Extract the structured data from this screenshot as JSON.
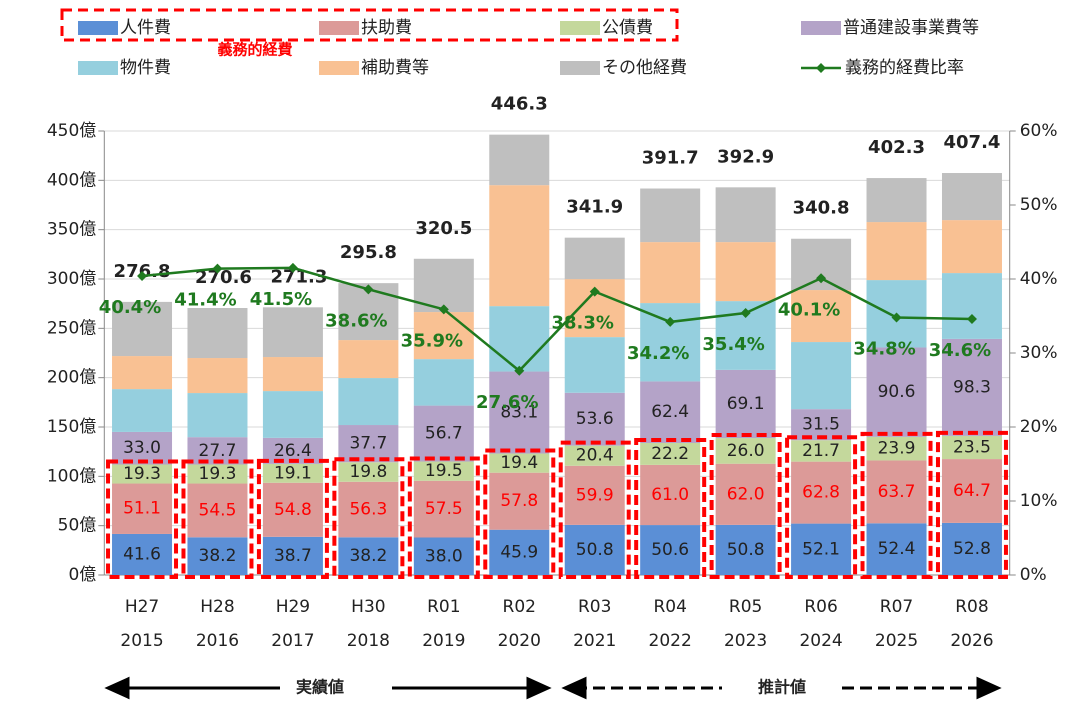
{
  "chart_data": {
    "type": "stacked_bar_line",
    "categories": [
      "H27",
      "H28",
      "H29",
      "H30",
      "R01",
      "R02",
      "R03",
      "R04",
      "R05",
      "R06",
      "R07",
      "R08"
    ],
    "category_years": [
      "2015",
      "2016",
      "2017",
      "2018",
      "2019",
      "2020",
      "2021",
      "2022",
      "2023",
      "2024",
      "2025",
      "2026"
    ],
    "series": [
      {
        "name": "人件費",
        "color": "#5b8fd6",
        "values": [
          41.6,
          38.2,
          38.7,
          38.2,
          38.0,
          45.9,
          50.8,
          50.6,
          50.8,
          52.1,
          52.4,
          52.8
        ],
        "value_labels": [
          "41.6",
          "38.2",
          "38.7",
          "38.2",
          "38.0",
          "45.9",
          "50.8",
          "50.6",
          "50.8",
          "52.1",
          "52.4",
          "52.8"
        ],
        "label_color": "#222222"
      },
      {
        "name": "扶助費",
        "color": "#dc9a98",
        "values": [
          51.1,
          54.5,
          54.8,
          56.3,
          57.5,
          57.8,
          59.9,
          61.0,
          62.0,
          62.8,
          63.7,
          64.7
        ],
        "value_labels": [
          "51.1",
          "54.5",
          "54.8",
          "56.3",
          "57.5",
          "57.8",
          "59.9",
          "61.0",
          "62.0",
          "62.8",
          "63.7",
          "64.7"
        ],
        "label_color": "#ff0000"
      },
      {
        "name": "公債費",
        "color": "#c4d89c",
        "values": [
          19.3,
          19.3,
          19.1,
          19.8,
          19.5,
          19.4,
          20.4,
          22.2,
          26.0,
          21.7,
          23.9,
          23.5
        ],
        "value_labels": [
          "19.3",
          "19.3",
          "19.1",
          "19.8",
          "19.5",
          "19.4",
          "20.4",
          "22.2",
          "26.0",
          "21.7",
          "23.9",
          "23.5"
        ],
        "label_color": "#222222"
      },
      {
        "name": "普通建設事業費等",
        "color": "#b4a3c8",
        "values": [
          33.0,
          27.7,
          26.4,
          37.7,
          56.7,
          83.1,
          53.6,
          62.4,
          69.1,
          31.5,
          90.6,
          98.3
        ],
        "value_labels": [
          "33.0",
          "27.7",
          "26.4",
          "37.7",
          "56.7",
          "83.1",
          "53.6",
          "62.4",
          "69.1",
          "31.5",
          "90.6",
          "98.3"
        ],
        "label_color": "#222222"
      },
      {
        "name": "物件費",
        "color": "#95cfde",
        "values": [
          43.4,
          44.7,
          47.4,
          47.6,
          47.1,
          66.3,
          56.4,
          79.4,
          69.7,
          68.0,
          68.3,
          66.7
        ]
      },
      {
        "name": "補助費等",
        "color": "#f9c193",
        "values": [
          33.5,
          35.5,
          34.5,
          38.5,
          47.7,
          122.6,
          58.8,
          61.8,
          59.8,
          52.7,
          58.8,
          53.7
        ]
      },
      {
        "name": "その他経費",
        "color": "#bfbfbf",
        "values": [
          54.9,
          50.7,
          50.4,
          57.7,
          54.0,
          51.2,
          42.0,
          54.3,
          55.5,
          52.0,
          44.6,
          47.7
        ]
      },
      {
        "name": "義務的経費比率",
        "color": "#1f7a1f",
        "type": "line",
        "axis": "y2",
        "values": [
          40.4,
          41.4,
          41.5,
          38.6,
          35.9,
          27.6,
          38.3,
          34.2,
          35.4,
          40.1,
          34.8,
          34.6
        ],
        "value_labels": [
          "40.4%",
          "41.4%",
          "41.5%",
          "38.6%",
          "35.9%",
          "27.6%",
          "38.3%",
          "34.2%",
          "35.4%",
          "40.1%",
          "34.8%",
          "34.6%"
        ]
      }
    ],
    "totals": [
      276.8,
      270.6,
      271.3,
      295.8,
      320.5,
      446.3,
      341.9,
      391.7,
      392.9,
      340.8,
      402.3,
      407.4
    ],
    "ylim": [
      0,
      450
    ],
    "yticks": [
      {
        "value": 0,
        "label": "0億"
      },
      {
        "value": 50,
        "label": "50億"
      },
      {
        "value": 100,
        "label": "100億"
      },
      {
        "value": 150,
        "label": "150億"
      },
      {
        "value": 200,
        "label": "200億"
      },
      {
        "value": 250,
        "label": "250億"
      },
      {
        "value": 300,
        "label": "300億"
      },
      {
        "value": 350,
        "label": "350億"
      },
      {
        "value": 400,
        "label": "400億"
      },
      {
        "value": 450,
        "label": "450億"
      }
    ],
    "y2lim": [
      0,
      60
    ],
    "y2ticks": [
      {
        "value": 0,
        "label": "0%"
      },
      {
        "value": 10,
        "label": "10%"
      },
      {
        "value": 20,
        "label": "20%"
      },
      {
        "value": 30,
        "label": "30%"
      },
      {
        "value": 40,
        "label": "40%"
      },
      {
        "value": 50,
        "label": "50%"
      },
      {
        "value": 60,
        "label": "60%"
      }
    ],
    "grid": true,
    "annotation": "義務的経費",
    "actual_label": "実績値",
    "forecast_label": "推計値"
  }
}
